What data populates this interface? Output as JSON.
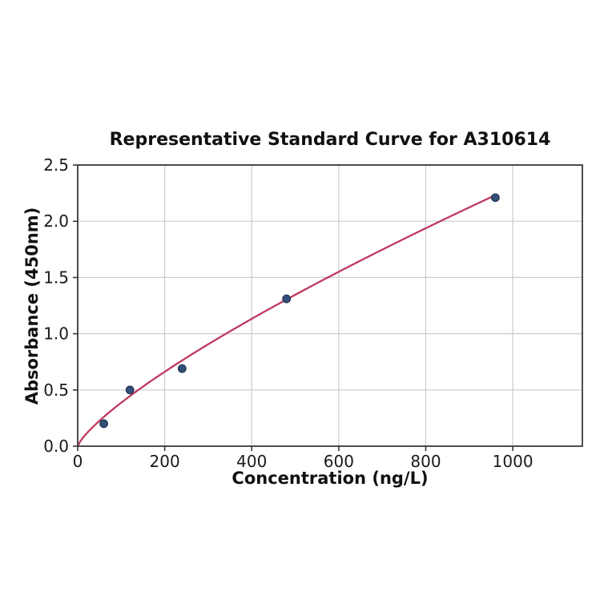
{
  "chart_data": {
    "type": "scatter",
    "title": "Representative Standard Curve for A310614",
    "xlabel": "Concentration (ng/L)",
    "ylabel": "Absorbance (450nm)",
    "x": [
      60,
      120,
      240,
      480,
      960
    ],
    "y": [
      0.2,
      0.5,
      0.69,
      1.31,
      2.21
    ],
    "xlim": [
      0,
      1160
    ],
    "ylim": [
      0,
      2.5
    ],
    "xticks": [
      0,
      200,
      400,
      600,
      800,
      1000
    ],
    "xtick_labels": [
      "0",
      "200",
      "400",
      "600",
      "800",
      "1000"
    ],
    "yticks": [
      0,
      0.5,
      1.0,
      1.5,
      2.0,
      2.5
    ],
    "ytick_labels": [
      "0.0",
      "0.5",
      "1.0",
      "1.5",
      "2.0",
      "2.5"
    ],
    "grid": true,
    "legend": "none",
    "fit_curve": {
      "type": "power",
      "a": 0.0109,
      "b": 0.775,
      "x_start": 0,
      "x_end": 960
    },
    "colors": {
      "background": "#ffffff",
      "curve": "#bf3a5f",
      "marker_fill": "#31507a",
      "marker_edge": "#20344f",
      "grid": "#cccccc",
      "spine": "#3a3a3a",
      "text": "#1a1a1a"
    }
  }
}
